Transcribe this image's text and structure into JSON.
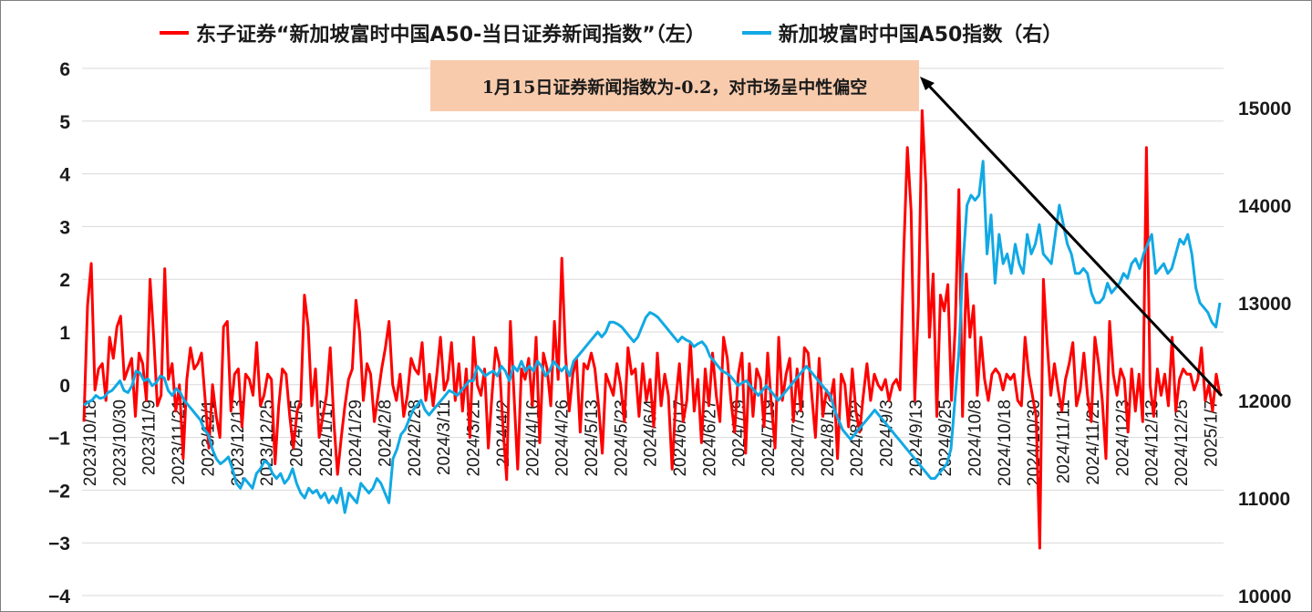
{
  "legend": {
    "series1": "东子证券“新加坡富时中国A50-当日证券新闻指数”（左）",
    "series2": "新加坡富时中国A50指数（右）"
  },
  "annotation": "1月15日证券新闻指数为-0.2，对市场呈中性偏空",
  "colors": {
    "series1": "#ff0000",
    "series2": "#11a9e4",
    "grid": "#d9d9d9",
    "arrow": "#000000"
  },
  "chart_data": {
    "type": "line",
    "x_tick_labels": [
      "2023/10/18",
      "2023/10/30",
      "2023/11/9",
      "2023/11/21",
      "2023/12/1",
      "2023/12/13",
      "2023/12/25",
      "2024/1/5",
      "2024/1/17",
      "2024/1/29",
      "2024/2/8",
      "2024/2/28",
      "2024/3/11",
      "2024/3/21",
      "2024/4/2",
      "2024/4/16",
      "2024/4/26",
      "2024/5/13",
      "2024/5/23",
      "2024/6/4",
      "2024/6/17",
      "2024/6/27",
      "2024/7/9",
      "2024/7/19",
      "2024/7/31",
      "2024/8/12",
      "2024/8/22",
      "2024/9/3",
      "2024/9/13",
      "2024/9/25",
      "2024/10/8",
      "2024/10/18",
      "2024/10/30",
      "2024/11/11",
      "2024/11/21",
      "2024/12/3",
      "2024/12/13",
      "2024/12/25",
      "2025/1/7"
    ],
    "y_left": {
      "ticks": [
        6,
        5,
        4,
        3,
        2,
        1,
        0,
        -1,
        -2,
        -3,
        -4
      ],
      "ylim": [
        -4,
        6
      ]
    },
    "y_right": {
      "ticks": [
        15000,
        14000,
        13000,
        12000,
        11000,
        10000
      ],
      "ylim": [
        10000,
        15400
      ]
    },
    "series": [
      {
        "name": "东子证券“新加坡富时中国A50-当日证券新闻指数”（左）",
        "axis": "left",
        "values": [
          -0.7,
          1.5,
          2.3,
          -0.1,
          0.3,
          0.4,
          -0.3,
          0.9,
          0.5,
          1.1,
          1.3,
          0.1,
          0.3,
          0.5,
          -0.6,
          0.6,
          0.4,
          -0.3,
          2.0,
          0.9,
          -0.4,
          -0.2,
          2.2,
          0.1,
          0.4,
          -0.5,
          0.0,
          -1.4,
          0.1,
          0.7,
          0.3,
          0.4,
          0.6,
          -0.3,
          -1.2,
          0.0,
          -0.6,
          -1.0,
          1.1,
          1.2,
          -0.5,
          0.2,
          0.3,
          -0.8,
          0.2,
          0.1,
          -0.2,
          0.8,
          -0.4,
          -0.2,
          0.2,
          0.1,
          -1.5,
          -0.4,
          0.3,
          0.2,
          -0.6,
          -1.2,
          -0.5,
          -0.3,
          1.7,
          1.1,
          -0.4,
          0.3,
          -1.0,
          -0.6,
          -0.2,
          0.7,
          -0.7,
          -1.7,
          -1.0,
          -0.4,
          0.1,
          0.3,
          1.6,
          1.0,
          -0.3,
          0.4,
          0.2,
          -0.7,
          -0.2,
          0.3,
          0.7,
          1.2,
          0.0,
          -0.3,
          0.2,
          -0.6,
          -0.2,
          0.5,
          0.3,
          0.2,
          0.8,
          -0.3,
          0.2,
          -0.4,
          0.2,
          0.9,
          -0.1,
          0.1,
          0.8,
          -0.3,
          0.4,
          -0.5,
          0.3,
          -1.0,
          0.9,
          0.0,
          -0.2,
          0.3,
          -1.2,
          -0.2,
          0.7,
          0.4,
          -0.8,
          -1.8,
          1.2,
          -0.2,
          -1.6,
          0.3,
          0.1,
          0.5,
          -0.4,
          0.9,
          -1.1,
          0.6,
          0.3,
          -0.4,
          1.2,
          0.1,
          2.4,
          0.6,
          -0.5,
          0.2,
          0.5,
          -0.9,
          0.4,
          0.3,
          0.6,
          0.3,
          -0.4,
          -1.3,
          0.2,
          0.0,
          -0.2,
          0.4,
          0.0,
          -0.7,
          0.7,
          0.2,
          0.3,
          -0.6,
          0.4,
          -0.3,
          0.1,
          -0.8,
          0.6,
          -0.4,
          0.2,
          -0.2,
          -1.6,
          -0.3,
          0.4,
          -0.7,
          -0.3,
          0.8,
          -0.5,
          0.1,
          -1.1,
          0.3,
          -0.4,
          0.6,
          -0.2,
          -0.7,
          0.9,
          0.5,
          -0.3,
          -0.9,
          0.2,
          0.6,
          -1.3,
          0.4,
          -0.6,
          0.3,
          0.1,
          -0.8,
          0.6,
          -0.4,
          -1.2,
          0.9,
          -0.3,
          0.2,
          0.5,
          -0.7,
          0.3,
          -0.5,
          0.7,
          0.6,
          -0.2,
          -1.0,
          0.5,
          -0.6,
          -0.1,
          -0.3,
          0.1,
          -1.4,
          0.2,
          0.0,
          -0.8,
          0.3,
          -0.5,
          -0.9,
          -0.2,
          0.4,
          -0.3,
          0.2,
          0.0,
          -0.1,
          0.1,
          -0.3,
          0.0,
          0.1,
          -0.1,
          2.5,
          4.5,
          3.3,
          -0.3,
          1.5,
          5.2,
          3.8,
          0.9,
          2.1,
          -0.6,
          1.7,
          1.4,
          1.9,
          -0.3,
          1.1,
          3.7,
          -0.6,
          2.1,
          0.9,
          1.5,
          -0.2,
          0.9,
          0.1,
          -0.3,
          0.2,
          0.3,
          0.2,
          -0.1,
          0.2,
          0.1,
          0.2,
          -0.3,
          -0.4,
          0.9,
          0.2,
          -0.2,
          -0.6,
          -3.1,
          2.0,
          0.8,
          -0.2,
          0.4,
          -0.1,
          -0.5,
          0.1,
          0.4,
          0.8,
          -0.4,
          -0.1,
          0.6,
          -0.2,
          -0.7,
          0.9,
          0.4,
          -0.3,
          -1.4,
          1.2,
          0.2,
          -0.2,
          0.3,
          0.1,
          -0.9,
          0.3,
          -0.5,
          0.2,
          -0.7,
          4.5,
          0.0,
          -0.6,
          0.3,
          -0.2,
          0.2,
          -0.4,
          0.9,
          -0.5,
          0.1,
          0.3,
          0.2,
          0.2,
          -0.1,
          0.1,
          0.7,
          -0.3,
          0.0,
          -0.5,
          0.2,
          -0.2
        ],
        "color": "#ff0000"
      },
      {
        "name": "新加坡富时中国A50指数（右）",
        "axis": "right",
        "values": [
          11950,
          11980,
          12000,
          12050,
          12020,
          12030,
          12080,
          12100,
          12150,
          12200,
          12100,
          12080,
          12150,
          12300,
          12280,
          12200,
          12220,
          12150,
          12180,
          12250,
          12230,
          12100,
          12050,
          12120,
          12080,
          12000,
          11950,
          11900,
          11850,
          11800,
          11700,
          11650,
          11500,
          11400,
          11350,
          11380,
          11420,
          11300,
          11150,
          11100,
          11200,
          11150,
          11100,
          11250,
          11300,
          11380,
          11350,
          11250,
          11200,
          11250,
          11150,
          11200,
          11300,
          11150,
          11050,
          11000,
          11100,
          11050,
          11080,
          11000,
          11050,
          10950,
          11020,
          10950,
          11100,
          10850,
          11050,
          11000,
          10950,
          11150,
          11100,
          11050,
          11100,
          11200,
          11150,
          11050,
          10950,
          11400,
          11500,
          11650,
          11700,
          11800,
          11900,
          11950,
          12000,
          11900,
          11850,
          11900,
          11950,
          12000,
          12050,
          12100,
          12080,
          12050,
          12100,
          12150,
          12200,
          12200,
          12350,
          12300,
          12250,
          12280,
          12300,
          12250,
          12350,
          12300,
          12200,
          12350,
          12300,
          12400,
          12300,
          12350,
          12300,
          12400,
          12350,
          12250,
          12300,
          12400,
          12350,
          12300,
          12350,
          12250,
          12400,
          12450,
          12500,
          12550,
          12600,
          12650,
          12700,
          12650,
          12700,
          12800,
          12800,
          12780,
          12750,
          12700,
          12650,
          12600,
          12650,
          12750,
          12850,
          12900,
          12880,
          12850,
          12800,
          12750,
          12700,
          12650,
          12600,
          12650,
          12620,
          12600,
          12550,
          12580,
          12600,
          12550,
          12450,
          12400,
          12350,
          12300,
          12280,
          12250,
          12200,
          12150,
          12180,
          12200,
          12150,
          12100,
          12050,
          12100,
          12150,
          12100,
          12050,
          12000,
          12050,
          12100,
          12150,
          12200,
          12250,
          12300,
          12350,
          12300,
          12250,
          12200,
          12150,
          12100,
          12050,
          11900,
          11800,
          11700,
          11650,
          11600,
          11650,
          11700,
          11750,
          11800,
          11850,
          11900,
          11850,
          11800,
          11750,
          11700,
          11650,
          11600,
          11550,
          11500,
          11450,
          11400,
          11350,
          11300,
          11250,
          11200,
          11200,
          11250,
          11300,
          11350,
          11500,
          12000,
          12500,
          13400,
          14000,
          14100,
          14050,
          14100,
          14450,
          13500,
          13900,
          13200,
          13700,
          13400,
          13500,
          13300,
          13600,
          13400,
          13300,
          13700,
          13500,
          13600,
          13800,
          13500,
          13450,
          13400,
          13700,
          14000,
          13800,
          13600,
          13500,
          13300,
          13300,
          13350,
          13300,
          13100,
          13000,
          13000,
          13050,
          13200,
          13100,
          13150,
          13200,
          13300,
          13250,
          13400,
          13450,
          13350,
          13500,
          13600,
          13700,
          13300,
          13350,
          13400,
          13300,
          13350,
          13500,
          13650,
          13600,
          13700,
          13500,
          13150,
          13000,
          12950,
          12900,
          12800,
          12750,
          13000
        ],
        "color": "#11a9e4"
      }
    ],
    "grid": "horizontal",
    "legend_position": "top"
  }
}
